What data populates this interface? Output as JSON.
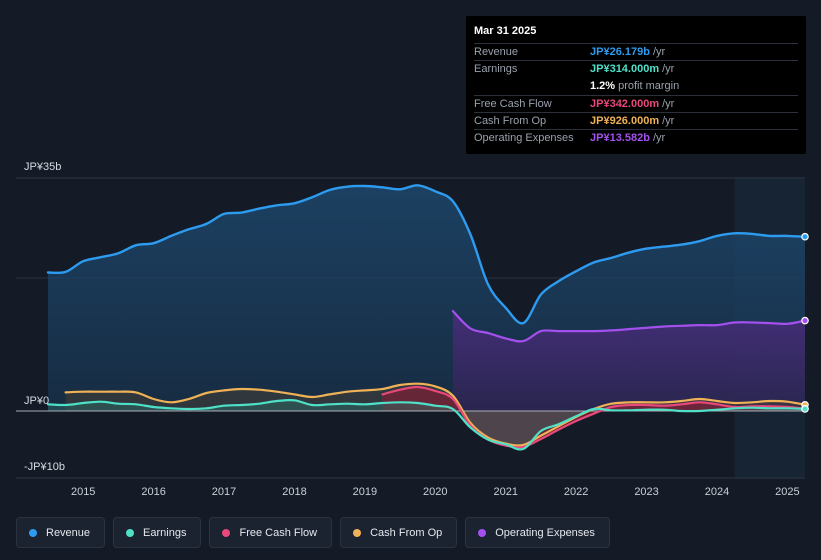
{
  "colors": {
    "revenue": "#2d9cf0",
    "earnings": "#4fe0c8",
    "fcf": "#e8487a",
    "cfo": "#f0b256",
    "opex": "#a450ee"
  },
  "tooltip": {
    "date": "Mar 31 2025",
    "rows": [
      {
        "label": "Revenue",
        "value": "JP¥26.179b",
        "unit": "/yr"
      },
      {
        "label": "Earnings",
        "value": "JP¥314.000m",
        "unit": "/yr"
      },
      {
        "label": "",
        "value": "1.2%",
        "unit": "profit margin"
      },
      {
        "label": "Free Cash Flow",
        "value": "JP¥342.000m",
        "unit": "/yr"
      },
      {
        "label": "Cash From Op",
        "value": "JP¥926.000m",
        "unit": "/yr"
      },
      {
        "label": "Operating Expenses",
        "value": "JP¥13.582b",
        "unit": "/yr"
      }
    ]
  },
  "legend": {
    "items": [
      {
        "label": "Revenue",
        "icon": "revenue-dot-icon"
      },
      {
        "label": "Earnings",
        "icon": "earnings-dot-icon"
      },
      {
        "label": "Free Cash Flow",
        "icon": "fcf-dot-icon"
      },
      {
        "label": "Cash From Op",
        "icon": "cfo-dot-icon"
      },
      {
        "label": "Operating Expenses",
        "icon": "opex-dot-icon"
      }
    ]
  },
  "chart_data": {
    "type": "area",
    "title": "",
    "xlabel": "",
    "ylabel": "",
    "unit": "JP¥ billions",
    "xlim": [
      2014.5,
      2025.25
    ],
    "ylim": [
      -10,
      35
    ],
    "ytick_labels": [
      {
        "value": 35,
        "label": "JP¥35b"
      },
      {
        "value": 0,
        "label": "JP¥0"
      },
      {
        "value": -10,
        "label": "-JP¥10b"
      }
    ],
    "xtick_labels": [
      "2015",
      "2016",
      "2017",
      "2018",
      "2019",
      "2020",
      "2021",
      "2022",
      "2023",
      "2024",
      "2025"
    ],
    "xtick_values": [
      2015,
      2016,
      2017,
      2018,
      2019,
      2020,
      2021,
      2022,
      2023,
      2024,
      2025
    ],
    "highlight_range": [
      2024.25,
      2025.25
    ],
    "series": [
      {
        "name": "Revenue",
        "key": "revenue",
        "x": [
          2014.5,
          2014.75,
          2015.0,
          2015.25,
          2015.5,
          2015.75,
          2016.0,
          2016.25,
          2016.5,
          2016.75,
          2017.0,
          2017.25,
          2017.5,
          2017.75,
          2018.0,
          2018.25,
          2018.5,
          2018.75,
          2019.0,
          2019.25,
          2019.5,
          2019.75,
          2020.0,
          2020.25,
          2020.5,
          2020.75,
          2021.0,
          2021.25,
          2021.5,
          2021.75,
          2022.0,
          2022.25,
          2022.5,
          2022.75,
          2023.0,
          2023.25,
          2023.5,
          2023.75,
          2024.0,
          2024.25,
          2024.5,
          2024.75,
          2025.0,
          2025.25
        ],
        "values": [
          20.8,
          20.9,
          22.5,
          23.1,
          23.7,
          24.9,
          25.2,
          26.3,
          27.3,
          28.1,
          29.6,
          29.8,
          30.4,
          30.9,
          31.2,
          32.1,
          33.2,
          33.7,
          33.8,
          33.6,
          33.3,
          33.9,
          33.0,
          31.5,
          26.5,
          19.0,
          15.5,
          13.2,
          17.5,
          19.5,
          21.0,
          22.3,
          23.0,
          23.8,
          24.4,
          24.7,
          25.0,
          25.5,
          26.3,
          26.7,
          26.6,
          26.3,
          26.3,
          26.18
        ]
      },
      {
        "name": "Earnings",
        "key": "earnings",
        "x": [
          2014.5,
          2014.75,
          2015.0,
          2015.25,
          2015.5,
          2015.75,
          2016.0,
          2016.25,
          2016.5,
          2016.75,
          2017.0,
          2017.25,
          2017.5,
          2017.75,
          2018.0,
          2018.25,
          2018.5,
          2018.75,
          2019.0,
          2019.25,
          2019.5,
          2019.75,
          2020.0,
          2020.25,
          2020.5,
          2020.75,
          2021.0,
          2021.25,
          2021.5,
          2021.75,
          2022.0,
          2022.25,
          2022.5,
          2022.75,
          2023.0,
          2023.25,
          2023.5,
          2023.75,
          2024.0,
          2024.25,
          2024.5,
          2024.75,
          2025.0,
          2025.25
        ],
        "values": [
          1.0,
          0.9,
          1.2,
          1.4,
          1.1,
          1.0,
          0.6,
          0.4,
          0.3,
          0.4,
          0.8,
          0.9,
          1.1,
          1.5,
          1.6,
          0.9,
          1.0,
          1.1,
          1.0,
          1.2,
          1.3,
          1.2,
          0.8,
          0.3,
          -2.5,
          -4.3,
          -5.0,
          -5.7,
          -3.0,
          -2.0,
          -0.8,
          0.3,
          0.1,
          0.1,
          0.2,
          0.2,
          0.0,
          0.0,
          0.2,
          0.4,
          0.5,
          0.4,
          0.4,
          0.31
        ]
      },
      {
        "name": "Free Cash Flow",
        "key": "fcf",
        "x": [
          2019.25,
          2019.5,
          2019.75,
          2020.0,
          2020.25,
          2020.5,
          2020.75,
          2021.0,
          2021.25,
          2021.5,
          2021.75,
          2022.0,
          2022.25,
          2022.5,
          2022.75,
          2023.0,
          2023.25,
          2023.5,
          2023.75,
          2024.0,
          2024.25,
          2024.5,
          2024.75,
          2025.0,
          2025.25
        ],
        "values": [
          2.5,
          3.2,
          3.6,
          3.0,
          1.8,
          -2.2,
          -4.3,
          -5.2,
          -5.4,
          -4.2,
          -2.8,
          -1.5,
          -0.4,
          0.6,
          0.9,
          0.9,
          0.8,
          1.0,
          1.3,
          1.0,
          0.6,
          0.7,
          0.7,
          0.6,
          0.34
        ]
      },
      {
        "name": "Cash From Op",
        "key": "cfo",
        "x": [
          2014.75,
          2015.0,
          2015.25,
          2015.5,
          2015.75,
          2016.0,
          2016.25,
          2016.5,
          2016.75,
          2017.0,
          2017.25,
          2017.5,
          2017.75,
          2018.0,
          2018.25,
          2018.5,
          2018.75,
          2019.0,
          2019.25,
          2019.5,
          2019.75,
          2020.0,
          2020.25,
          2020.5,
          2020.75,
          2021.0,
          2021.25,
          2021.5,
          2021.75,
          2022.0,
          2022.25,
          2022.5,
          2022.75,
          2023.0,
          2023.25,
          2023.5,
          2023.75,
          2024.0,
          2024.25,
          2024.5,
          2024.75,
          2025.0,
          2025.25
        ],
        "values": [
          2.8,
          2.9,
          2.9,
          2.9,
          2.8,
          1.8,
          1.3,
          1.8,
          2.7,
          3.1,
          3.3,
          3.2,
          2.9,
          2.5,
          2.1,
          2.5,
          2.9,
          3.1,
          3.3,
          3.9,
          4.1,
          3.7,
          2.3,
          -1.8,
          -4.0,
          -4.9,
          -5.1,
          -3.7,
          -2.3,
          -0.9,
          0.3,
          1.1,
          1.3,
          1.3,
          1.3,
          1.5,
          1.8,
          1.5,
          1.2,
          1.3,
          1.5,
          1.4,
          0.93
        ]
      },
      {
        "name": "Operating Expenses",
        "key": "opex",
        "x": [
          2020.25,
          2020.5,
          2020.75,
          2021.0,
          2021.25,
          2021.5,
          2021.75,
          2022.0,
          2022.25,
          2022.5,
          2022.75,
          2023.0,
          2023.25,
          2023.5,
          2023.75,
          2024.0,
          2024.25,
          2024.5,
          2024.75,
          2025.0,
          2025.25
        ],
        "values": [
          15.0,
          12.4,
          11.7,
          10.9,
          10.5,
          12.0,
          12.0,
          12.0,
          12.0,
          12.1,
          12.3,
          12.5,
          12.7,
          12.8,
          12.9,
          12.9,
          13.3,
          13.3,
          13.2,
          13.1,
          13.58
        ]
      }
    ]
  }
}
